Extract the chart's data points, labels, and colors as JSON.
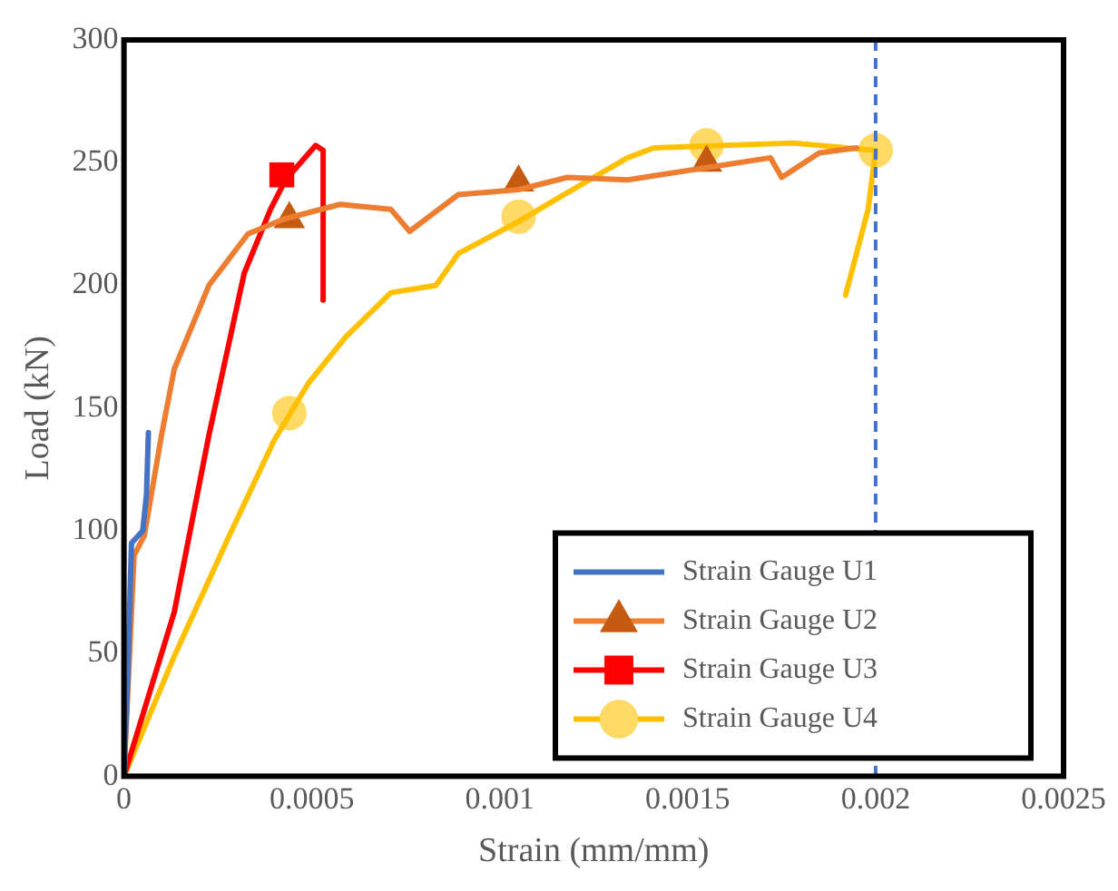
{
  "chart_data": {
    "type": "line",
    "xlabel": "Strain (mm/mm)",
    "ylabel": "Load (kN)",
    "xlim": [
      0,
      0.0025
    ],
    "xticks": [
      0,
      0.0005,
      0.001,
      0.0015,
      0.002,
      0.0025
    ],
    "ylim": [
      0,
      300
    ],
    "yticks": [
      0,
      50,
      100,
      150,
      200,
      250,
      300
    ],
    "grid": false,
    "legend": "bottom right",
    "line_style": "solid",
    "ref_lines": [
      {
        "axis": "x",
        "value": 0.002,
        "color": "#4472c4",
        "line_style": "dashed"
      }
    ],
    "series": [
      {
        "name": "Strain Gauge U1",
        "color": "#4472c4",
        "x": [
          0,
          1e-05,
          2e-05,
          5e-05,
          6e-05,
          6.5e-05
        ],
        "values": [
          0,
          40,
          95,
          100,
          115,
          140
        ]
      },
      {
        "name": "Strain Gauge U2",
        "color": "#ed7d31",
        "x": [
          0,
          2.7e-05,
          5.4e-05,
          0.0001,
          0.000134,
          0.000226,
          0.00033,
          0.000425,
          0.000575,
          0.00071,
          0.00076,
          0.00089,
          0.00105,
          0.00118,
          0.00134,
          0.00155,
          0.00172,
          0.00175,
          0.00185,
          0.00195
        ],
        "values": [
          0,
          90,
          98,
          139,
          166,
          200,
          221,
          227,
          233,
          231,
          222,
          237,
          239,
          244,
          243,
          248,
          252,
          244,
          254,
          256
        ]
      },
      {
        "type": "scatter",
        "marker": "triangle",
        "color": "#c55a11",
        "x": [
          0.00044,
          0.00105,
          0.00155
        ],
        "values": [
          227,
          242,
          250
        ]
      },
      {
        "name": "Strain Gauge U3",
        "color": "#ff0000",
        "x": [
          0,
          0.000134,
          0.000226,
          0.00032,
          0.00039,
          0.00043,
          0.00051,
          0.00053,
          0.00053
        ],
        "values": [
          0,
          67,
          139,
          205,
          231,
          243,
          257,
          255,
          194
        ]
      },
      {
        "type": "scatter",
        "marker": "square",
        "color": "#ff0000",
        "x": [
          0.00042
        ],
        "values": [
          245
        ]
      },
      {
        "name": "Strain Gauge U4",
        "color": "#ffc000",
        "x": [
          0,
          0.000134,
          0.00028,
          0.0004,
          0.00049,
          0.00059,
          0.00071,
          0.00083,
          0.00089,
          0.00105,
          0.00116,
          0.00134,
          0.00141,
          0.00178,
          0.002,
          0.00198,
          0.00192
        ],
        "values": [
          0,
          49,
          98,
          137,
          160,
          179,
          197,
          200,
          213,
          226,
          236,
          252,
          256,
          258,
          255,
          231,
          196
        ]
      },
      {
        "type": "scatter",
        "marker": "circle",
        "color": "#ffd966",
        "x": [
          0.00044,
          0.00105,
          0.00155,
          0.002
        ],
        "values": [
          148,
          228,
          257,
          255
        ]
      }
    ]
  }
}
